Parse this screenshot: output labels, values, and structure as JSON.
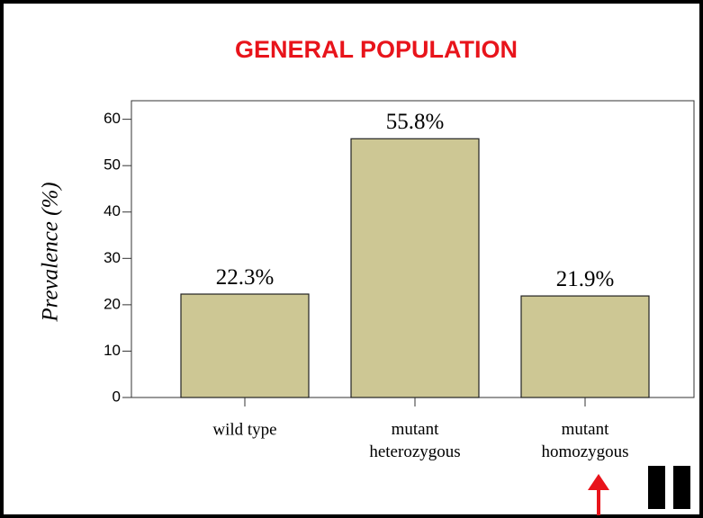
{
  "chart_data": {
    "type": "bar",
    "title": "GENERAL  POPULATION",
    "y_label": "Prevalence (%)",
    "categories": [
      "wild type",
      "mutant\nheterozygous",
      "mutant\nhomozygous"
    ],
    "values": [
      22.3,
      55.8,
      21.9
    ],
    "value_labels": [
      "22.3%",
      "55.8%",
      "21.9%"
    ],
    "color": "#cdc794",
    "ylim": [
      0,
      64
    ],
    "yticks": [
      0,
      10,
      20,
      30,
      40,
      50,
      60
    ]
  }
}
